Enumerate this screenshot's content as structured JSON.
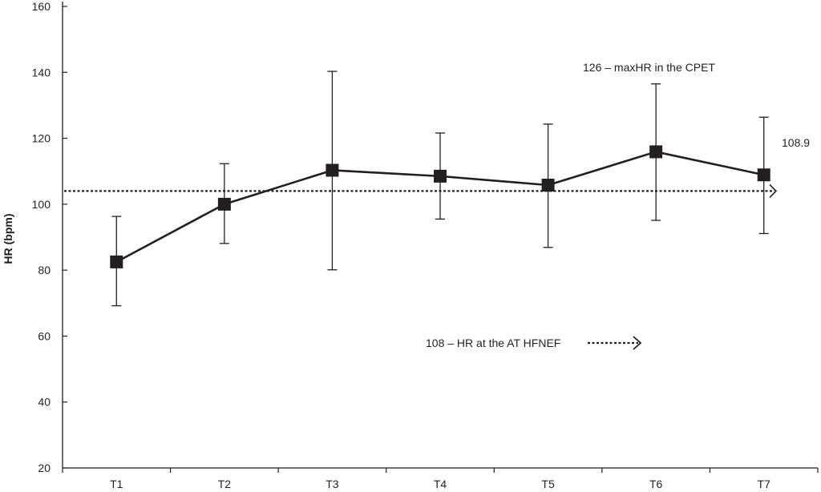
{
  "chart_data": {
    "type": "line",
    "title": "",
    "xlabel": "",
    "ylabel": "HR (bpm)",
    "ylim": [
      20,
      160
    ],
    "yticks": [
      20,
      40,
      60,
      80,
      100,
      120,
      140,
      160
    ],
    "categories": [
      "T1",
      "T2",
      "T3",
      "T4",
      "T5",
      "T6",
      "T7"
    ],
    "series": [
      {
        "values": [
          82.5,
          100,
          110.3,
          108.5,
          105.8,
          115.9,
          108.9
        ],
        "error_low": [
          69.2,
          88.1,
          80.1,
          95.5,
          86.9,
          95.1,
          91.1
        ],
        "error_high": [
          96.3,
          112.3,
          140.3,
          121.6,
          124.3,
          136.5,
          126.4
        ],
        "marker": "square",
        "color": "#231f20"
      }
    ],
    "reference_line": {
      "y": 104,
      "style": "dotted"
    },
    "annotations": {
      "max_hr": "126 – maxHR in the CPET",
      "at_hr": "108 – HR at the AT HFNEF",
      "last_value": "108.9"
    },
    "grid": false,
    "legend": "none"
  }
}
